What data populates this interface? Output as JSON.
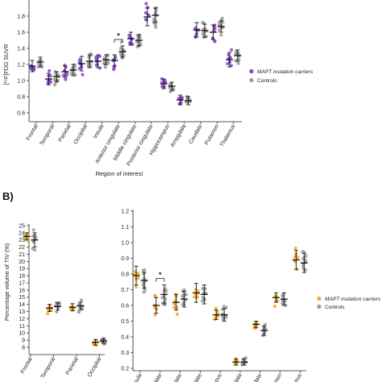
{
  "panel_b_label": "B)",
  "chart_data": [
    {
      "type": "scatter",
      "ylabel": "[¹⁸F]FDG SUVR",
      "xlabel": "Region of interest",
      "ylim": [
        0.6,
        2.0
      ],
      "yticks": [
        "0.6",
        "0.8",
        "1.0",
        "1.2",
        "1.4",
        "1.6",
        "1.8"
      ],
      "categories": [
        "Frontal",
        "Temporal",
        "Parietal",
        "Occipital",
        "Insula",
        "Anterior cingulate",
        "Middle cingulate",
        "Posterior cingulate",
        "Hippocampus",
        "Amygdala",
        "Caudate",
        "Putamen",
        "Thalamus"
      ],
      "series": [
        {
          "name": "MAPT mutation carriers",
          "color": "#8a3fd1",
          "mean": [
            1.18,
            1.02,
            1.11,
            1.21,
            1.24,
            1.25,
            1.52,
            1.79,
            0.96,
            0.76,
            1.63,
            1.6,
            1.26
          ],
          "sd": [
            0.07,
            0.07,
            0.07,
            0.09,
            0.08,
            0.07,
            0.08,
            0.11,
            0.06,
            0.06,
            0.09,
            0.09,
            0.09
          ]
        },
        {
          "name": "Controls",
          "color": "#9b9b9b",
          "mean": [
            1.23,
            1.05,
            1.13,
            1.24,
            1.26,
            1.36,
            1.5,
            1.81,
            0.93,
            0.75,
            1.62,
            1.67,
            1.31
          ],
          "sd": [
            0.06,
            0.06,
            0.07,
            0.08,
            0.06,
            0.07,
            0.07,
            0.09,
            0.05,
            0.05,
            0.08,
            0.07,
            0.07
          ]
        }
      ],
      "significance": [
        {
          "category": "Anterior cingulate",
          "label": "*"
        }
      ],
      "legend": [
        "MAPT mutation carriers",
        "Controls"
      ],
      "legend_placement": "right"
    },
    {
      "type": "scatter",
      "ylabel": "Percentage volume of TIV (%)",
      "ylim": [
        8,
        25
      ],
      "yticks": [
        "8",
        "9",
        "10",
        "11",
        "12",
        "13",
        "14",
        "15",
        "16",
        "17",
        "18",
        "19",
        "20",
        "21",
        "22",
        "23",
        "24",
        "25"
      ],
      "categories": [
        "Frontal",
        "Temporal",
        "Parietal",
        "Occipital"
      ],
      "series": [
        {
          "name": "MAPT mutation carriers",
          "color": "#f5a623",
          "mean": [
            23.5,
            13.5,
            13.6,
            8.7
          ],
          "sd": [
            0.5,
            0.5,
            0.5,
            0.4
          ]
        },
        {
          "name": "Controls",
          "color": "#9b9b9b",
          "mean": [
            23.0,
            13.7,
            13.8,
            8.9
          ],
          "sd": [
            1.0,
            0.5,
            0.5,
            0.3
          ]
        }
      ]
    },
    {
      "type": "scatter",
      "ylim": [
        0.2,
        1.2
      ],
      "yticks": [
        "0.2",
        "0.3",
        "0.4",
        "0.5",
        "0.6",
        "0.7",
        "0.8",
        "0.9",
        "1.0",
        "1.1",
        "1.2"
      ],
      "categories": [
        "Insula",
        "Anterior cingulate",
        "Middle cingulate",
        "Posterior cingulate",
        "Hippocampus",
        "Amygdala",
        "Caudate",
        "Putamen",
        "Thalamus"
      ],
      "tick_text": [
        "Insula",
        "cingulate",
        "cingulate",
        "cingulate",
        "ocampus",
        "mygdala",
        "Caudate",
        "Putamen",
        "Thalamus"
      ],
      "series": [
        {
          "name": "MAPT mutation carriers",
          "color": "#f5a623",
          "mean": [
            0.79,
            0.6,
            0.62,
            0.68,
            0.54,
            0.24,
            0.48,
            0.65,
            0.89
          ],
          "sd": [
            0.06,
            0.05,
            0.05,
            0.06,
            0.03,
            0.02,
            0.02,
            0.03,
            0.06
          ]
        },
        {
          "name": "Controls",
          "color": "#9b9b9b",
          "mean": [
            0.76,
            0.67,
            0.64,
            0.67,
            0.54,
            0.24,
            0.44,
            0.64,
            0.87
          ],
          "sd": [
            0.05,
            0.06,
            0.05,
            0.06,
            0.04,
            0.02,
            0.03,
            0.04,
            0.06
          ]
        }
      ],
      "significance": [
        {
          "category": "Anterior cingulate",
          "label": "*"
        }
      ],
      "legend": [
        "MAPT mutation carriers",
        "Controls"
      ],
      "legend_placement": "right"
    }
  ]
}
